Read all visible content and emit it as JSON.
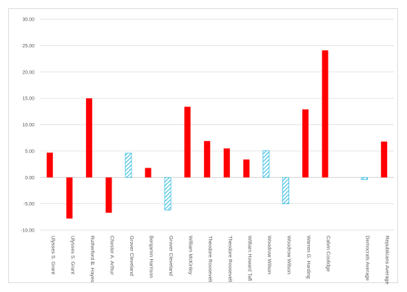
{
  "chart_data": {
    "type": "bar",
    "title": "",
    "xlabel": "",
    "ylabel": "",
    "ylim": [
      -10,
      30
    ],
    "y_ticks": [
      "-10.00",
      "-5.00",
      "0.00",
      "5.00",
      "10.00",
      "15.00",
      "20.00",
      "25.00",
      "30.00"
    ],
    "grid": true,
    "legend": "none",
    "colors": {
      "republican": "#ff0000",
      "democrat": "#33bbe0",
      "grid": "#d9d9d9",
      "axis": "#bfbfbf"
    },
    "categories": [
      "Ulysses S. Grant",
      "Ulysses S. Grant",
      "Rutherford B. Hayes",
      "Chester A. Arthur",
      "Grover Cleveland",
      "Benjamin Harrison",
      "Grover Cleveland",
      "William McKinley",
      "Theodore Roosevelt",
      "Theodore Roosevelt",
      "William Howard Taft",
      "Woodrow Wilson",
      "Woodrow Wilson",
      "Warren G. Harding",
      "Calvin Coolidge",
      "",
      "Democrats Average",
      "Republicans Average"
    ],
    "values": [
      4.7,
      -7.8,
      15.0,
      -6.7,
      4.6,
      1.8,
      -6.2,
      13.4,
      6.9,
      5.5,
      3.4,
      5.1,
      -5.0,
      12.9,
      24.1,
      null,
      -0.4,
      6.8
    ],
    "party": [
      "R",
      "R",
      "R",
      "R",
      "D",
      "R",
      "D",
      "R",
      "R",
      "R",
      "R",
      "D",
      "D",
      "R",
      "R",
      "",
      "D",
      "R"
    ]
  }
}
